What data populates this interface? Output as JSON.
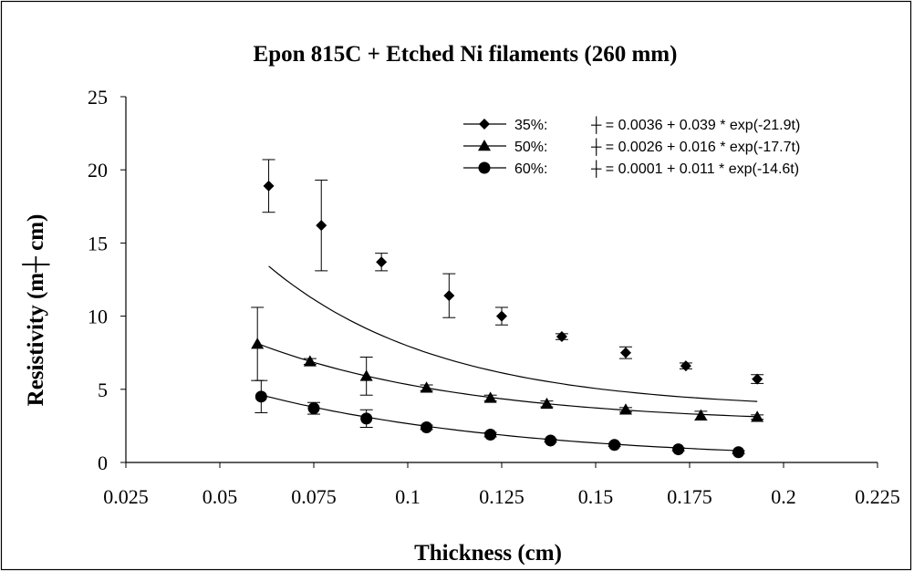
{
  "chart_data": {
    "type": "scatter",
    "title": "Epon 815C + Etched Ni filaments (260 mm)",
    "xlabel": "Thickness (cm)",
    "ylabel": "Resistivity (m┼ cm)",
    "xlim": [
      0.025,
      0.225
    ],
    "ylim": [
      0,
      25
    ],
    "xticks": [
      "0.025",
      "0.05",
      "0.075",
      "0.1",
      "0.125",
      "0.15",
      "0.175",
      "0.2",
      "0.225"
    ],
    "yticks": [
      "0",
      "5",
      "10",
      "15",
      "20",
      "25"
    ],
    "grid": false,
    "legend_position": "top-right",
    "series": [
      {
        "name": "35%:",
        "marker": "diamond",
        "fit_label": "┼ = 0.0036 + 0.039 * exp(-21.9t)",
        "fit": {
          "a": 3.6,
          "b": 39,
          "k": 21.9
        },
        "x": [
          0.063,
          0.077,
          0.093,
          0.111,
          0.125,
          0.141,
          0.158,
          0.174,
          0.193
        ],
        "y": [
          18.9,
          16.2,
          13.7,
          11.4,
          10.0,
          8.6,
          7.5,
          6.6,
          5.7
        ],
        "err": [
          1.8,
          3.1,
          0.6,
          1.5,
          0.6,
          0.2,
          0.4,
          0.2,
          0.3
        ]
      },
      {
        "name": "50%:",
        "marker": "triangle",
        "fit_label": "┼ = 0.0026 + 0.016 * exp(-17.7t)",
        "fit": {
          "a": 2.6,
          "b": 16,
          "k": 17.7
        },
        "x": [
          0.06,
          0.074,
          0.089,
          0.105,
          0.122,
          0.137,
          0.158,
          0.178,
          0.193
        ],
        "y": [
          8.1,
          6.9,
          5.9,
          5.1,
          4.4,
          4.0,
          3.6,
          3.2,
          3.1
        ],
        "err": [
          2.5,
          0.2,
          1.3,
          0.2,
          0.2,
          0.2,
          0.15,
          0.3,
          0.15
        ]
      },
      {
        "name": "60%:",
        "marker": "circle",
        "fit_label": "┼ = 0.0001 + 0.011 * exp(-14.6t)",
        "fit": {
          "a": 0.1,
          "b": 11,
          "k": 14.6
        },
        "x": [
          0.061,
          0.075,
          0.089,
          0.105,
          0.122,
          0.138,
          0.155,
          0.172,
          0.188
        ],
        "y": [
          4.5,
          3.7,
          3.0,
          2.4,
          1.9,
          1.5,
          1.2,
          0.9,
          0.7
        ],
        "err": [
          1.1,
          0.4,
          0.6,
          0.15,
          0.15,
          0.1,
          0.1,
          0.1,
          0.1
        ]
      }
    ]
  }
}
